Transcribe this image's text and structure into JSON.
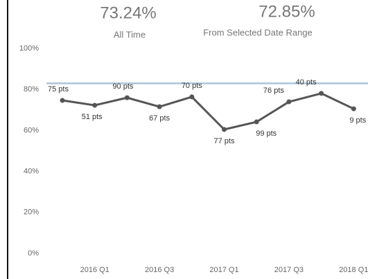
{
  "kpis": [
    {
      "value": "73.24%",
      "label": "All Time"
    },
    {
      "value": "72.85%",
      "label": "From Selected Date Range"
    }
  ],
  "chart_data": {
    "type": "line",
    "categories": [
      null,
      "2016 Q1",
      null,
      "2016 Q3",
      null,
      "2017 Q1",
      null,
      "2017 Q3",
      null,
      "2018 Q1"
    ],
    "series": [
      {
        "color": "#555555",
        "values": [
          76.7,
          74.3,
          78.0,
          73.6,
          78.4,
          62.5,
          66.2,
          76.0,
          80.1,
          72.6
        ]
      }
    ],
    "point_labels": [
      "75 pts",
      "51 pts",
      "90 pts",
      "67 pts",
      "70 pts",
      "77 pts",
      "99 pts",
      "76 pts",
      "40 pts",
      "9 pts"
    ],
    "reference_line": {
      "value": 85,
      "color": "#a9c4d9"
    },
    "ylim": [
      0,
      100
    ],
    "yticks": [
      {
        "value": 0,
        "label": "0%"
      },
      {
        "value": 20,
        "label": "20%"
      },
      {
        "value": 40,
        "label": "40%"
      },
      {
        "value": 60,
        "label": "60%"
      },
      {
        "value": 80,
        "label": "80%"
      },
      {
        "value": 100,
        "label": "100%"
      }
    ]
  }
}
